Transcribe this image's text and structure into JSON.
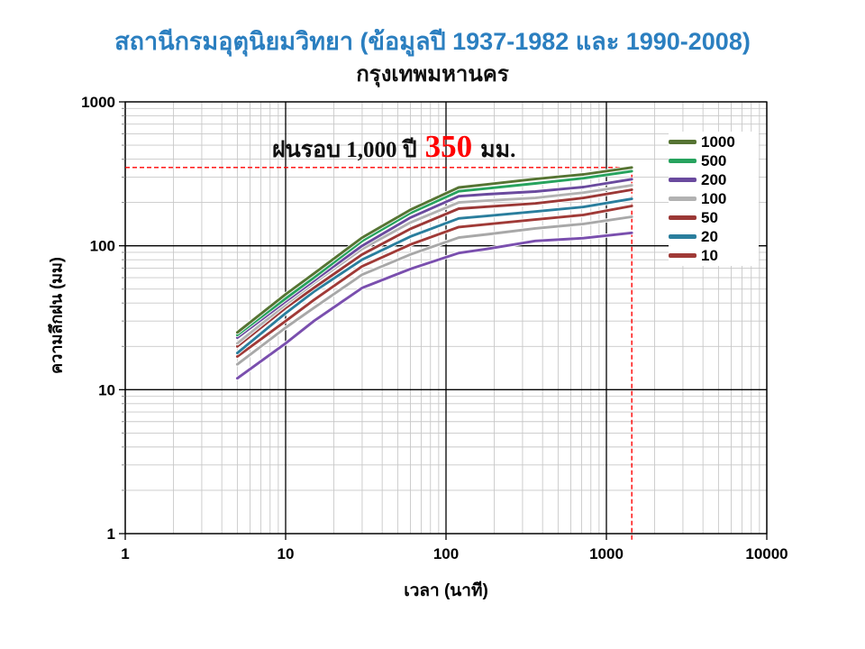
{
  "header": {
    "title": "สถานีกรมอุตุนิยมวิทยา (ข้อมูลปี 1937-1982 และ 1990-2008)",
    "subtitle": "กรุงเทพมหานคร",
    "title_color": "#2b7fc0"
  },
  "annotation": {
    "prefix": "ฝนรอบ 1,000 ปี",
    "value": "350",
    "suffix": "มม.",
    "value_color": "#ff0000"
  },
  "chart_data": {
    "type": "line",
    "title": "สถานีกรมอุตุนิยมวิทยา (ข้อมูลปี 1937-1982 และ 1990-2008) — กรุงเทพมหานคร",
    "xlabel": "เวลา (นาที)",
    "ylabel": "ความลึกฝน (มม)",
    "x_scale": "log",
    "y_scale": "log",
    "xlim": [
      1,
      10000
    ],
    "ylim": [
      1,
      1000
    ],
    "x_ticks": [
      "1",
      "10",
      "100",
      "1000",
      "10000"
    ],
    "y_ticks": [
      "1",
      "10",
      "100",
      "1000"
    ],
    "grid": {
      "major": true,
      "minor": true,
      "major_color": "#000000",
      "minor_color": "#c8c8c8"
    },
    "legend_position": "right",
    "x": [
      5,
      10,
      15,
      30,
      60,
      120,
      180,
      360,
      720,
      1440
    ],
    "series": [
      {
        "label": "1000",
        "color": "#567433",
        "in_legend": true,
        "values": [
          25,
          46,
          64,
          114,
          178,
          254,
          267,
          291,
          313,
          350
        ]
      },
      {
        "label": "500",
        "color": "#27a35e",
        "in_legend": true,
        "values": [
          24,
          43,
          60,
          108,
          169,
          239,
          250,
          271,
          295,
          330
        ]
      },
      {
        "label": "200",
        "color": "#6a4a9e",
        "in_legend": true,
        "values": [
          23,
          41,
          57,
          100,
          157,
          221,
          228,
          238,
          256,
          290
        ]
      },
      {
        "label": "100",
        "color": "#b2b2b2",
        "in_legend": true,
        "values": [
          21,
          39,
          55,
          95,
          145,
          200,
          206,
          215,
          234,
          263
        ]
      },
      {
        "label": "50",
        "color": "#9b3836",
        "in_legend": true,
        "values": [
          20,
          37,
          51,
          87,
          131,
          181,
          187,
          197,
          215,
          245
        ]
      },
      {
        "label": "20",
        "color": "#2a7e9d",
        "in_legend": true,
        "values": [
          18,
          34,
          48,
          80,
          116,
          155,
          161,
          173,
          186,
          212
        ]
      },
      {
        "label": "10",
        "color": "#a03a37",
        "in_legend": true,
        "values": [
          17,
          30,
          42,
          72,
          102,
          135,
          141,
          152,
          164,
          189
        ]
      },
      {
        "label": "",
        "color": "#a8a8a8",
        "in_legend": false,
        "values": [
          15,
          27,
          37,
          63,
          87,
          114,
          120,
          132,
          142,
          159
        ]
      },
      {
        "label": "",
        "color": "#7a4fae",
        "in_legend": false,
        "values": [
          12,
          21,
          30,
          51,
          69,
          89,
          95,
          108,
          113,
          123
        ]
      }
    ],
    "reference_lines": {
      "depth_mm": 350,
      "duration_min": 1440,
      "color": "#ff0000",
      "style": "dashed"
    }
  }
}
